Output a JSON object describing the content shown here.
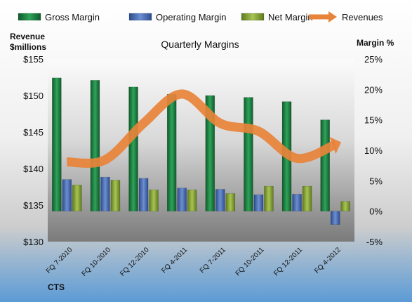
{
  "chart_data": {
    "type": "bar",
    "title": "Quarterly Margins",
    "company": "CTS",
    "categories": [
      "FQ 7-2010",
      "FQ 10-2010",
      "FQ 12-2010",
      "FQ 4-2011",
      "FQ 7-2011",
      "FQ 10-2011",
      "FQ 12-2011",
      "FQ 4-2012"
    ],
    "series": [
      {
        "name": "Gross Margin",
        "axis": "right",
        "color": "#1a7a3c",
        "values": [
          21.9,
          21.5,
          20.4,
          19.2,
          19.0,
          18.7,
          18.0,
          15.0
        ]
      },
      {
        "name": "Operating Margin",
        "axis": "right",
        "color": "#4a6fb5",
        "values": [
          5.2,
          5.6,
          5.4,
          3.8,
          3.6,
          2.7,
          2.8,
          -2.2
        ]
      },
      {
        "name": "Net Margin",
        "axis": "right",
        "color": "#8fae3b",
        "values": [
          4.3,
          5.1,
          3.5,
          3.5,
          2.9,
          4.1,
          4.1,
          1.6
        ]
      },
      {
        "name": "Revenues",
        "axis": "left",
        "type": "line",
        "color": "#e8833a",
        "values": [
          140.9,
          141.2,
          146.2,
          150.2,
          146.2,
          145.1,
          141.4,
          143.3
        ]
      }
    ],
    "y_left": {
      "label_line1": "Revenue",
      "label_line2": "$millions",
      "min": 130,
      "max": 155,
      "ticks": [
        "$130",
        "$135",
        "$140",
        "$145",
        "$150",
        "$155"
      ]
    },
    "y_right": {
      "label": "Margin %",
      "min": -5,
      "max": 25,
      "ticks": [
        "-5%",
        "0%",
        "5%",
        "10%",
        "15%",
        "20%",
        "25%"
      ]
    },
    "legend_position": "top",
    "grid": false
  }
}
